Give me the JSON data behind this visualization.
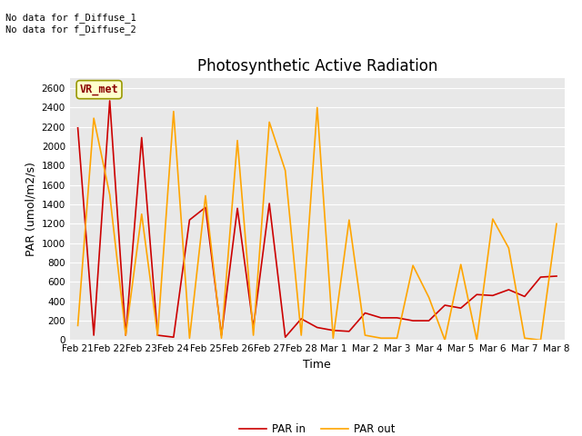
{
  "title": "Photosynthetic Active Radiation",
  "xlabel": "Time",
  "ylabel": "PAR (umol/m2/s)",
  "annotation_text": "No data for f_Diffuse_1\nNo data for f_Diffuse_2",
  "legend_box_label": "VR_met",
  "x_tick_labels": [
    "Feb 21",
    "Feb 22",
    "Feb 23",
    "Feb 24",
    "Feb 25",
    "Feb 26",
    "Feb 27",
    "Feb 28",
    "Mar 1",
    "Mar 2",
    "Mar 3",
    "Mar 4",
    "Mar 5",
    "Mar 6",
    "Mar 7",
    "Mar 8"
  ],
  "ylim": [
    0,
    2700
  ],
  "yticks": [
    0,
    200,
    400,
    600,
    800,
    1000,
    1200,
    1400,
    1600,
    1800,
    2000,
    2200,
    2400,
    2600
  ],
  "par_in_color": "#cc0000",
  "par_out_color": "#ffa500",
  "background_color": "#e8e8e8",
  "par_in": [
    2190,
    50,
    2470,
    50,
    2090,
    50,
    30,
    1240,
    1370,
    50,
    1360,
    130,
    1410,
    30,
    220,
    130,
    100,
    90,
    280,
    230,
    230,
    200,
    200,
    360,
    330,
    470,
    460,
    520,
    450,
    650,
    660
  ],
  "par_out": [
    150,
    2290,
    1500,
    50,
    1300,
    50,
    2360,
    20,
    1490,
    20,
    2060,
    50,
    2250,
    1750,
    50,
    2400,
    20,
    1240,
    50,
    20,
    20,
    770,
    440,
    0,
    780,
    0,
    1250,
    950,
    20,
    0,
    1200
  ],
  "x_values": [
    0,
    1,
    2,
    3,
    4,
    5,
    6,
    7,
    8,
    9,
    10,
    11,
    12,
    13,
    14,
    15,
    16,
    17,
    18,
    19,
    20,
    21,
    22,
    23,
    24,
    25,
    26,
    27,
    28,
    29,
    30
  ],
  "x_tick_positions": [
    0,
    2,
    4,
    6,
    8,
    10,
    12,
    14,
    16,
    18,
    20,
    22,
    24,
    26,
    28,
    30
  ],
  "title_fontsize": 12,
  "axis_label_fontsize": 9,
  "tick_fontsize": 7.5,
  "legend_fontsize": 8.5
}
